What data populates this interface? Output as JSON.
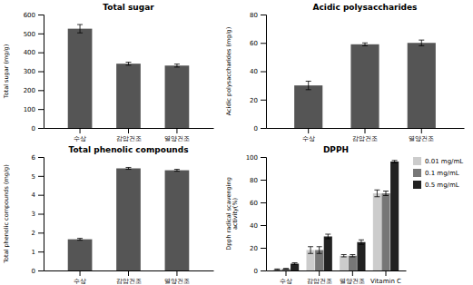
{
  "chart_data": [
    {
      "type": "bar",
      "title": "Total sugar",
      "ylabel": "Total sugar (mg/g)",
      "categories": [
        "수상",
        "감압건조",
        "열양건조"
      ],
      "values": [
        525,
        340,
        330
      ],
      "errors": [
        22,
        8,
        8
      ],
      "color": "#555555",
      "ylim": [
        0,
        600
      ],
      "yticks": [
        0,
        100,
        200,
        300,
        400,
        500,
        600
      ],
      "grid": false
    },
    {
      "type": "bar",
      "title": "Acidic polysaccharides",
      "ylabel": "Acidic polysaccharides (mg/g)",
      "categories": [
        "수상",
        "감압건조",
        "열양건조"
      ],
      "values": [
        30,
        59,
        60
      ],
      "errors": [
        3,
        1,
        2
      ],
      "color": "#555555",
      "ylim": [
        0,
        80
      ],
      "yticks": [
        0,
        20,
        40,
        60,
        80
      ],
      "grid": false
    },
    {
      "type": "bar",
      "title": "Total phenolic compounds",
      "ylabel": "Total phenolic compounds (mg/g)",
      "categories": [
        "수상",
        "감압건조",
        "열양건조"
      ],
      "values": [
        1.65,
        5.4,
        5.3
      ],
      "errors": [
        0.05,
        0.05,
        0.05
      ],
      "color": "#555555",
      "ylim": [
        0,
        6
      ],
      "yticks": [
        0,
        1,
        2,
        3,
        4,
        5,
        6
      ],
      "grid": false
    },
    {
      "type": "bar",
      "title": "DPPH",
      "ylabel": "Dpph radical scavenging\nactivity(%)",
      "categories": [
        "수상",
        "감압건조",
        "열양건조",
        "Vitamin C"
      ],
      "series": [
        {
          "name": "0.01 mg/mL",
          "color": "#cccccc",
          "values": [
            1,
            18,
            13,
            68
          ],
          "errors": [
            0.3,
            3,
            1,
            3
          ]
        },
        {
          "name": "0.1 mg/mL",
          "color": "#777777",
          "values": [
            1.5,
            18,
            13,
            68
          ],
          "errors": [
            0.3,
            3,
            1,
            2
          ]
        },
        {
          "name": "0.5 mg/mL",
          "color": "#222222",
          "values": [
            6,
            30,
            25,
            96
          ],
          "errors": [
            0.8,
            2,
            2,
            1
          ]
        }
      ],
      "ylim": [
        0,
        100
      ],
      "yticks": [
        0,
        20,
        40,
        60,
        80,
        100
      ],
      "grid": false,
      "legend": "right"
    }
  ]
}
